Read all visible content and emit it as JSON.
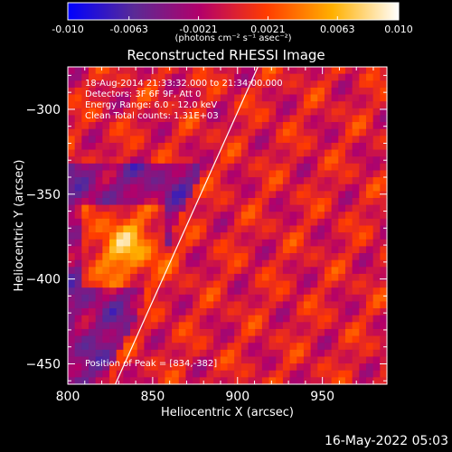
{
  "colorbar": {
    "ticks": [
      "-0.010",
      "-0.0063",
      "-0.0021",
      "0.0021",
      "0.0063",
      "0.010"
    ],
    "tick_values": [
      -0.01,
      -0.0063,
      -0.0021,
      0.0021,
      0.0063,
      0.01
    ],
    "range": [
      -0.01,
      0.01
    ],
    "unit_label": "(photons cm⁻² s⁻¹ asec⁻²)",
    "colors": [
      "#0000ff",
      "#5a2a96",
      "#b3006a",
      "#ff3c00",
      "#ffb000",
      "#ffffff"
    ]
  },
  "chart_data": {
    "type": "heatmap",
    "title": "Reconstructed RHESSI Image",
    "xlabel": "Heliocentric X (arcsec)",
    "ylabel": "Heliocentric Y (arcsec)",
    "xlim": [
      800,
      988
    ],
    "ylim": [
      -462,
      -275
    ],
    "xticks": [
      800,
      850,
      900,
      950
    ],
    "yticks": [
      -300,
      -350,
      -400,
      -450
    ],
    "info_lines": [
      "18-Aug-2014 21:33:32.000 to 21:34:00.000",
      "Detectors: 3F 6F 9F, Att 0",
      "Energy Range: 6.0 - 12.0 keV",
      "Clean     Total counts: 1.31E+03"
    ],
    "peak_label": "Position of Peak = [834,-382]",
    "peak": [
      834,
      -382
    ],
    "limb_line": {
      "x": [
        828,
        912
      ],
      "y": [
        -462,
        -275
      ]
    }
  },
  "timestamp": "16-May-2022 05:03"
}
